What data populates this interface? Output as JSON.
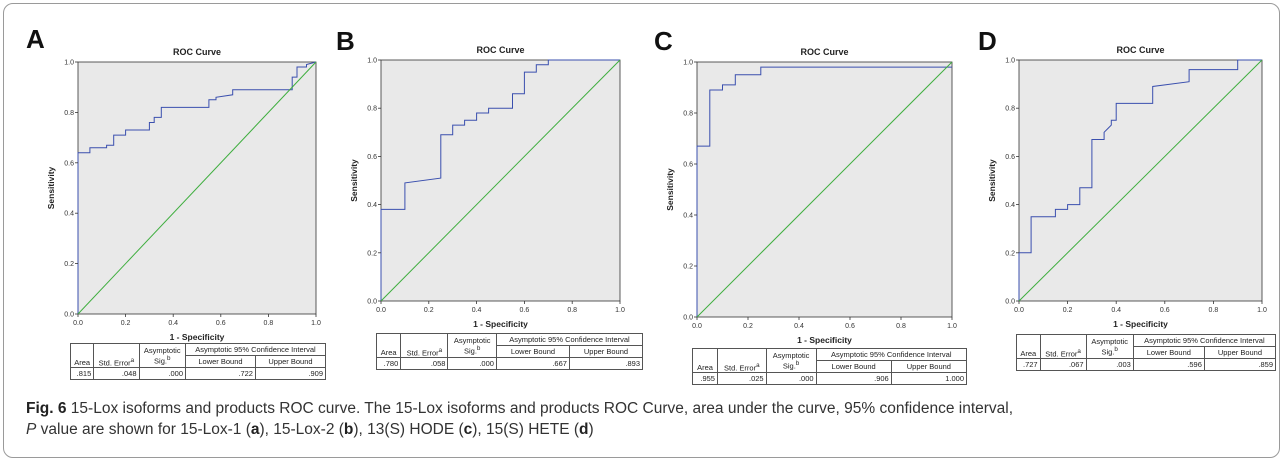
{
  "figure": {
    "caption_label": "Fig. 6",
    "caption_title": "15-Lox isoforms and products ROC curve.",
    "caption_body": "The 15-Lox isoforms and products ROC Curve, area under the curve, 95% confidence interval,",
    "caption_line2_parts": [
      {
        "t": "P",
        "style": "i"
      },
      {
        "t": " value are shown for 15-Lox-1 (",
        "style": ""
      },
      {
        "t": "a",
        "style": "b"
      },
      {
        "t": "), 15-Lox-2 (",
        "style": ""
      },
      {
        "t": "b",
        "style": "b"
      },
      {
        "t": "), 13(S) HODE (",
        "style": ""
      },
      {
        "t": "c",
        "style": "b"
      },
      {
        "t": "), 15(S) HETE (",
        "style": ""
      },
      {
        "t": "d",
        "style": "b"
      },
      {
        "t": ")",
        "style": ""
      }
    ]
  },
  "colors": {
    "plot_bg": "#e9e9e9",
    "roc_line": "#3a4fae",
    "diagonal": "#3fae3f",
    "frame": "#333333"
  },
  "table_headers": {
    "area": "Area",
    "std_error": "Std. Error",
    "std_error_sup": "a",
    "asym_sig_1": "Asymptotic",
    "asym_sig_2": "Sig.",
    "asym_sig_sup": "b",
    "ci": "Asymptotic 95% Confidence Interval",
    "lower": "Lower Bound",
    "upper": "Upper Bound"
  },
  "chart_data": [
    {
      "panel": "A",
      "type": "line",
      "title": "ROC Curve",
      "xlabel": "1 - Specificity",
      "ylabel": "Sensitivity",
      "xlim": [
        0,
        1
      ],
      "ylim": [
        0,
        1
      ],
      "xticks": [
        "0.0",
        "0.2",
        "0.4",
        "0.6",
        "0.8",
        "1.0"
      ],
      "yticks": [
        "0.0",
        "0.2",
        "0.4",
        "0.6",
        "0.8",
        "1.0"
      ],
      "grid": false,
      "series": [
        {
          "points": [
            [
              0,
              0
            ],
            [
              0,
              0.64
            ],
            [
              0.05,
              0.64
            ],
            [
              0.05,
              0.66
            ],
            [
              0.12,
              0.66
            ],
            [
              0.12,
              0.67
            ],
            [
              0.15,
              0.67
            ],
            [
              0.15,
              0.71
            ],
            [
              0.2,
              0.71
            ],
            [
              0.2,
              0.73
            ],
            [
              0.3,
              0.73
            ],
            [
              0.3,
              0.76
            ],
            [
              0.32,
              0.76
            ],
            [
              0.32,
              0.78
            ],
            [
              0.35,
              0.78
            ],
            [
              0.35,
              0.82
            ],
            [
              0.55,
              0.82
            ],
            [
              0.55,
              0.85
            ],
            [
              0.58,
              0.85
            ],
            [
              0.58,
              0.86
            ],
            [
              0.65,
              0.87
            ],
            [
              0.65,
              0.89
            ],
            [
              0.9,
              0.89
            ],
            [
              0.9,
              0.94
            ],
            [
              0.92,
              0.94
            ],
            [
              0.92,
              0.98
            ],
            [
              0.96,
              0.98
            ],
            [
              0.96,
              0.99
            ],
            [
              1,
              1
            ]
          ]
        },
        {
          "points": [
            [
              0,
              0
            ],
            [
              1,
              1
            ]
          ]
        }
      ],
      "stats": {
        "area": ".815",
        "std_error": ".048",
        "sig": ".000",
        "lower": ".722",
        "upper": ".909"
      }
    },
    {
      "panel": "B",
      "type": "line",
      "title": "ROC Curve",
      "xlabel": "1 - Specificity",
      "ylabel": "Sensitivity",
      "xlim": [
        0,
        1
      ],
      "ylim": [
        0,
        1
      ],
      "xticks": [
        "0.0",
        "0.2",
        "0.4",
        "0.6",
        "0.8",
        "1.0"
      ],
      "yticks": [
        "0.0",
        "0.2",
        "0.4",
        "0.6",
        "0.8",
        "1.0"
      ],
      "grid": false,
      "series": [
        {
          "points": [
            [
              0,
              0
            ],
            [
              0,
              0.38
            ],
            [
              0.1,
              0.38
            ],
            [
              0.1,
              0.49
            ],
            [
              0.25,
              0.51
            ],
            [
              0.25,
              0.69
            ],
            [
              0.3,
              0.69
            ],
            [
              0.3,
              0.73
            ],
            [
              0.35,
              0.73
            ],
            [
              0.35,
              0.75
            ],
            [
              0.4,
              0.75
            ],
            [
              0.4,
              0.78
            ],
            [
              0.45,
              0.78
            ],
            [
              0.45,
              0.8
            ],
            [
              0.55,
              0.8
            ],
            [
              0.55,
              0.86
            ],
            [
              0.6,
              0.86
            ],
            [
              0.6,
              0.95
            ],
            [
              0.65,
              0.95
            ],
            [
              0.65,
              0.98
            ],
            [
              0.7,
              0.98
            ],
            [
              0.7,
              1
            ],
            [
              1,
              1
            ]
          ]
        },
        {
          "points": [
            [
              0,
              0
            ],
            [
              1,
              1
            ]
          ]
        }
      ],
      "stats": {
        "area": ".780",
        "std_error": ".058",
        "sig": ".000",
        "lower": ".667",
        "upper": ".893"
      }
    },
    {
      "panel": "C",
      "type": "line",
      "title": "ROC Curve",
      "xlabel": "1 - Specificity",
      "ylabel": "Sensitivity",
      "xlim": [
        0,
        1
      ],
      "ylim": [
        0,
        1
      ],
      "xticks": [
        "0.0",
        "0.2",
        "0.4",
        "0.6",
        "0.8",
        "1.0"
      ],
      "yticks": [
        "0.0",
        "0.2",
        "0.4",
        "0.6",
        "0.8",
        "1.0"
      ],
      "grid": false,
      "series": [
        {
          "points": [
            [
              0,
              0
            ],
            [
              0,
              0.67
            ],
            [
              0.05,
              0.67
            ],
            [
              0.05,
              0.89
            ],
            [
              0.1,
              0.89
            ],
            [
              0.1,
              0.91
            ],
            [
              0.15,
              0.91
            ],
            [
              0.15,
              0.95
            ],
            [
              0.25,
              0.95
            ],
            [
              0.25,
              0.98
            ],
            [
              1,
              0.98
            ]
          ]
        },
        {
          "points": [
            [
              0,
              0
            ],
            [
              1,
              1
            ]
          ]
        }
      ],
      "stats": {
        "area": ".955",
        "std_error": ".025",
        "sig": ".000",
        "lower": ".906",
        "upper": "1.000"
      }
    },
    {
      "panel": "D",
      "type": "line",
      "title": "ROC Curve",
      "xlabel": "1 - Specificity",
      "ylabel": "Sensitivity",
      "xlim": [
        0,
        1
      ],
      "ylim": [
        0,
        1
      ],
      "xticks": [
        "0.0",
        "0.2",
        "0.4",
        "0.6",
        "0.8",
        "1.0"
      ],
      "yticks": [
        "0.0",
        "0.2",
        "0.4",
        "0.6",
        "0.8",
        "1.0"
      ],
      "grid": false,
      "series": [
        {
          "points": [
            [
              0,
              0
            ],
            [
              0,
              0.2
            ],
            [
              0.05,
              0.2
            ],
            [
              0.05,
              0.35
            ],
            [
              0.15,
              0.35
            ],
            [
              0.15,
              0.38
            ],
            [
              0.2,
              0.38
            ],
            [
              0.2,
              0.4
            ],
            [
              0.25,
              0.4
            ],
            [
              0.25,
              0.47
            ],
            [
              0.3,
              0.47
            ],
            [
              0.3,
              0.67
            ],
            [
              0.35,
              0.67
            ],
            [
              0.35,
              0.7
            ],
            [
              0.37,
              0.72
            ],
            [
              0.38,
              0.73
            ],
            [
              0.38,
              0.75
            ],
            [
              0.4,
              0.75
            ],
            [
              0.4,
              0.82
            ],
            [
              0.55,
              0.82
            ],
            [
              0.55,
              0.89
            ],
            [
              0.7,
              0.91
            ],
            [
              0.7,
              0.96
            ],
            [
              0.9,
              0.96
            ],
            [
              0.9,
              1
            ],
            [
              1,
              1
            ]
          ]
        },
        {
          "points": [
            [
              0,
              0
            ],
            [
              1,
              1
            ]
          ]
        }
      ],
      "stats": {
        "area": ".727",
        "std_error": ".067",
        "sig": ".003",
        "lower": ".596",
        "upper": ".859"
      }
    }
  ]
}
